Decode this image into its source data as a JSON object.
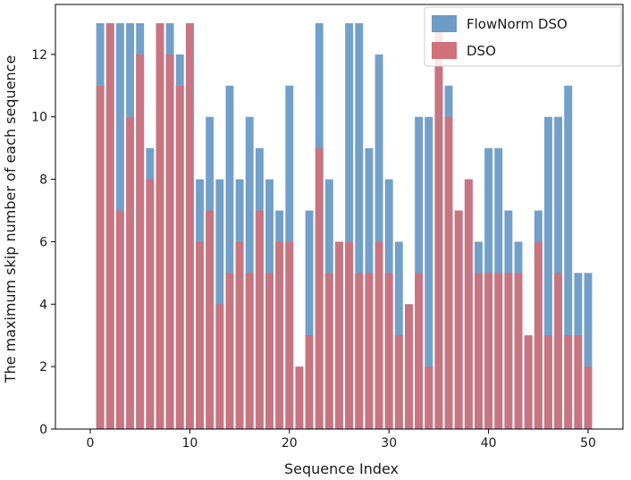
{
  "chart_data": {
    "type": "bar",
    "title": "",
    "xlabel": "Sequence Index",
    "ylabel": "The maximum skip number of each sequence",
    "xlim": [
      -3.5,
      53.5
    ],
    "ylim": [
      0,
      13.6
    ],
    "xticks": [
      0,
      10,
      20,
      30,
      40,
      50
    ],
    "yticks": [
      0,
      2,
      4,
      6,
      8,
      10,
      12
    ],
    "grid": false,
    "legend_position": "top-right",
    "x": [
      1,
      2,
      3,
      4,
      5,
      6,
      7,
      8,
      9,
      10,
      11,
      12,
      13,
      14,
      15,
      16,
      17,
      18,
      19,
      20,
      21,
      22,
      23,
      24,
      25,
      26,
      27,
      28,
      29,
      30,
      31,
      32,
      33,
      34,
      35,
      36,
      37,
      38,
      39,
      40,
      41,
      42,
      43,
      44,
      45,
      46,
      47,
      48,
      49,
      50
    ],
    "series": [
      {
        "name": "FlowNorm DSO",
        "color": "#6c9bc6",
        "values": [
          13,
          13,
          13,
          13,
          13,
          9,
          13,
          13,
          12,
          13,
          8,
          10,
          8,
          11,
          8,
          10,
          9,
          8,
          7,
          11,
          2,
          7,
          13,
          8,
          6,
          13,
          13,
          9,
          12,
          8,
          6,
          4,
          10,
          10,
          13,
          11,
          7,
          8,
          6,
          9,
          9,
          7,
          6,
          3,
          7,
          10,
          10,
          11,
          5,
          5
        ]
      },
      {
        "name": "DSO",
        "color": "#d2707a",
        "values": [
          11,
          13,
          7,
          10,
          12,
          8,
          13,
          12,
          11,
          13,
          6,
          7,
          4,
          5,
          6,
          5,
          7,
          5,
          6,
          6,
          2,
          3,
          9,
          5,
          6,
          6,
          5,
          5,
          6,
          5,
          3,
          4,
          5,
          2,
          13,
          10,
          7,
          8,
          5,
          5,
          5,
          5,
          5,
          3,
          6,
          3,
          5,
          3,
          3,
          2
        ]
      }
    ]
  }
}
